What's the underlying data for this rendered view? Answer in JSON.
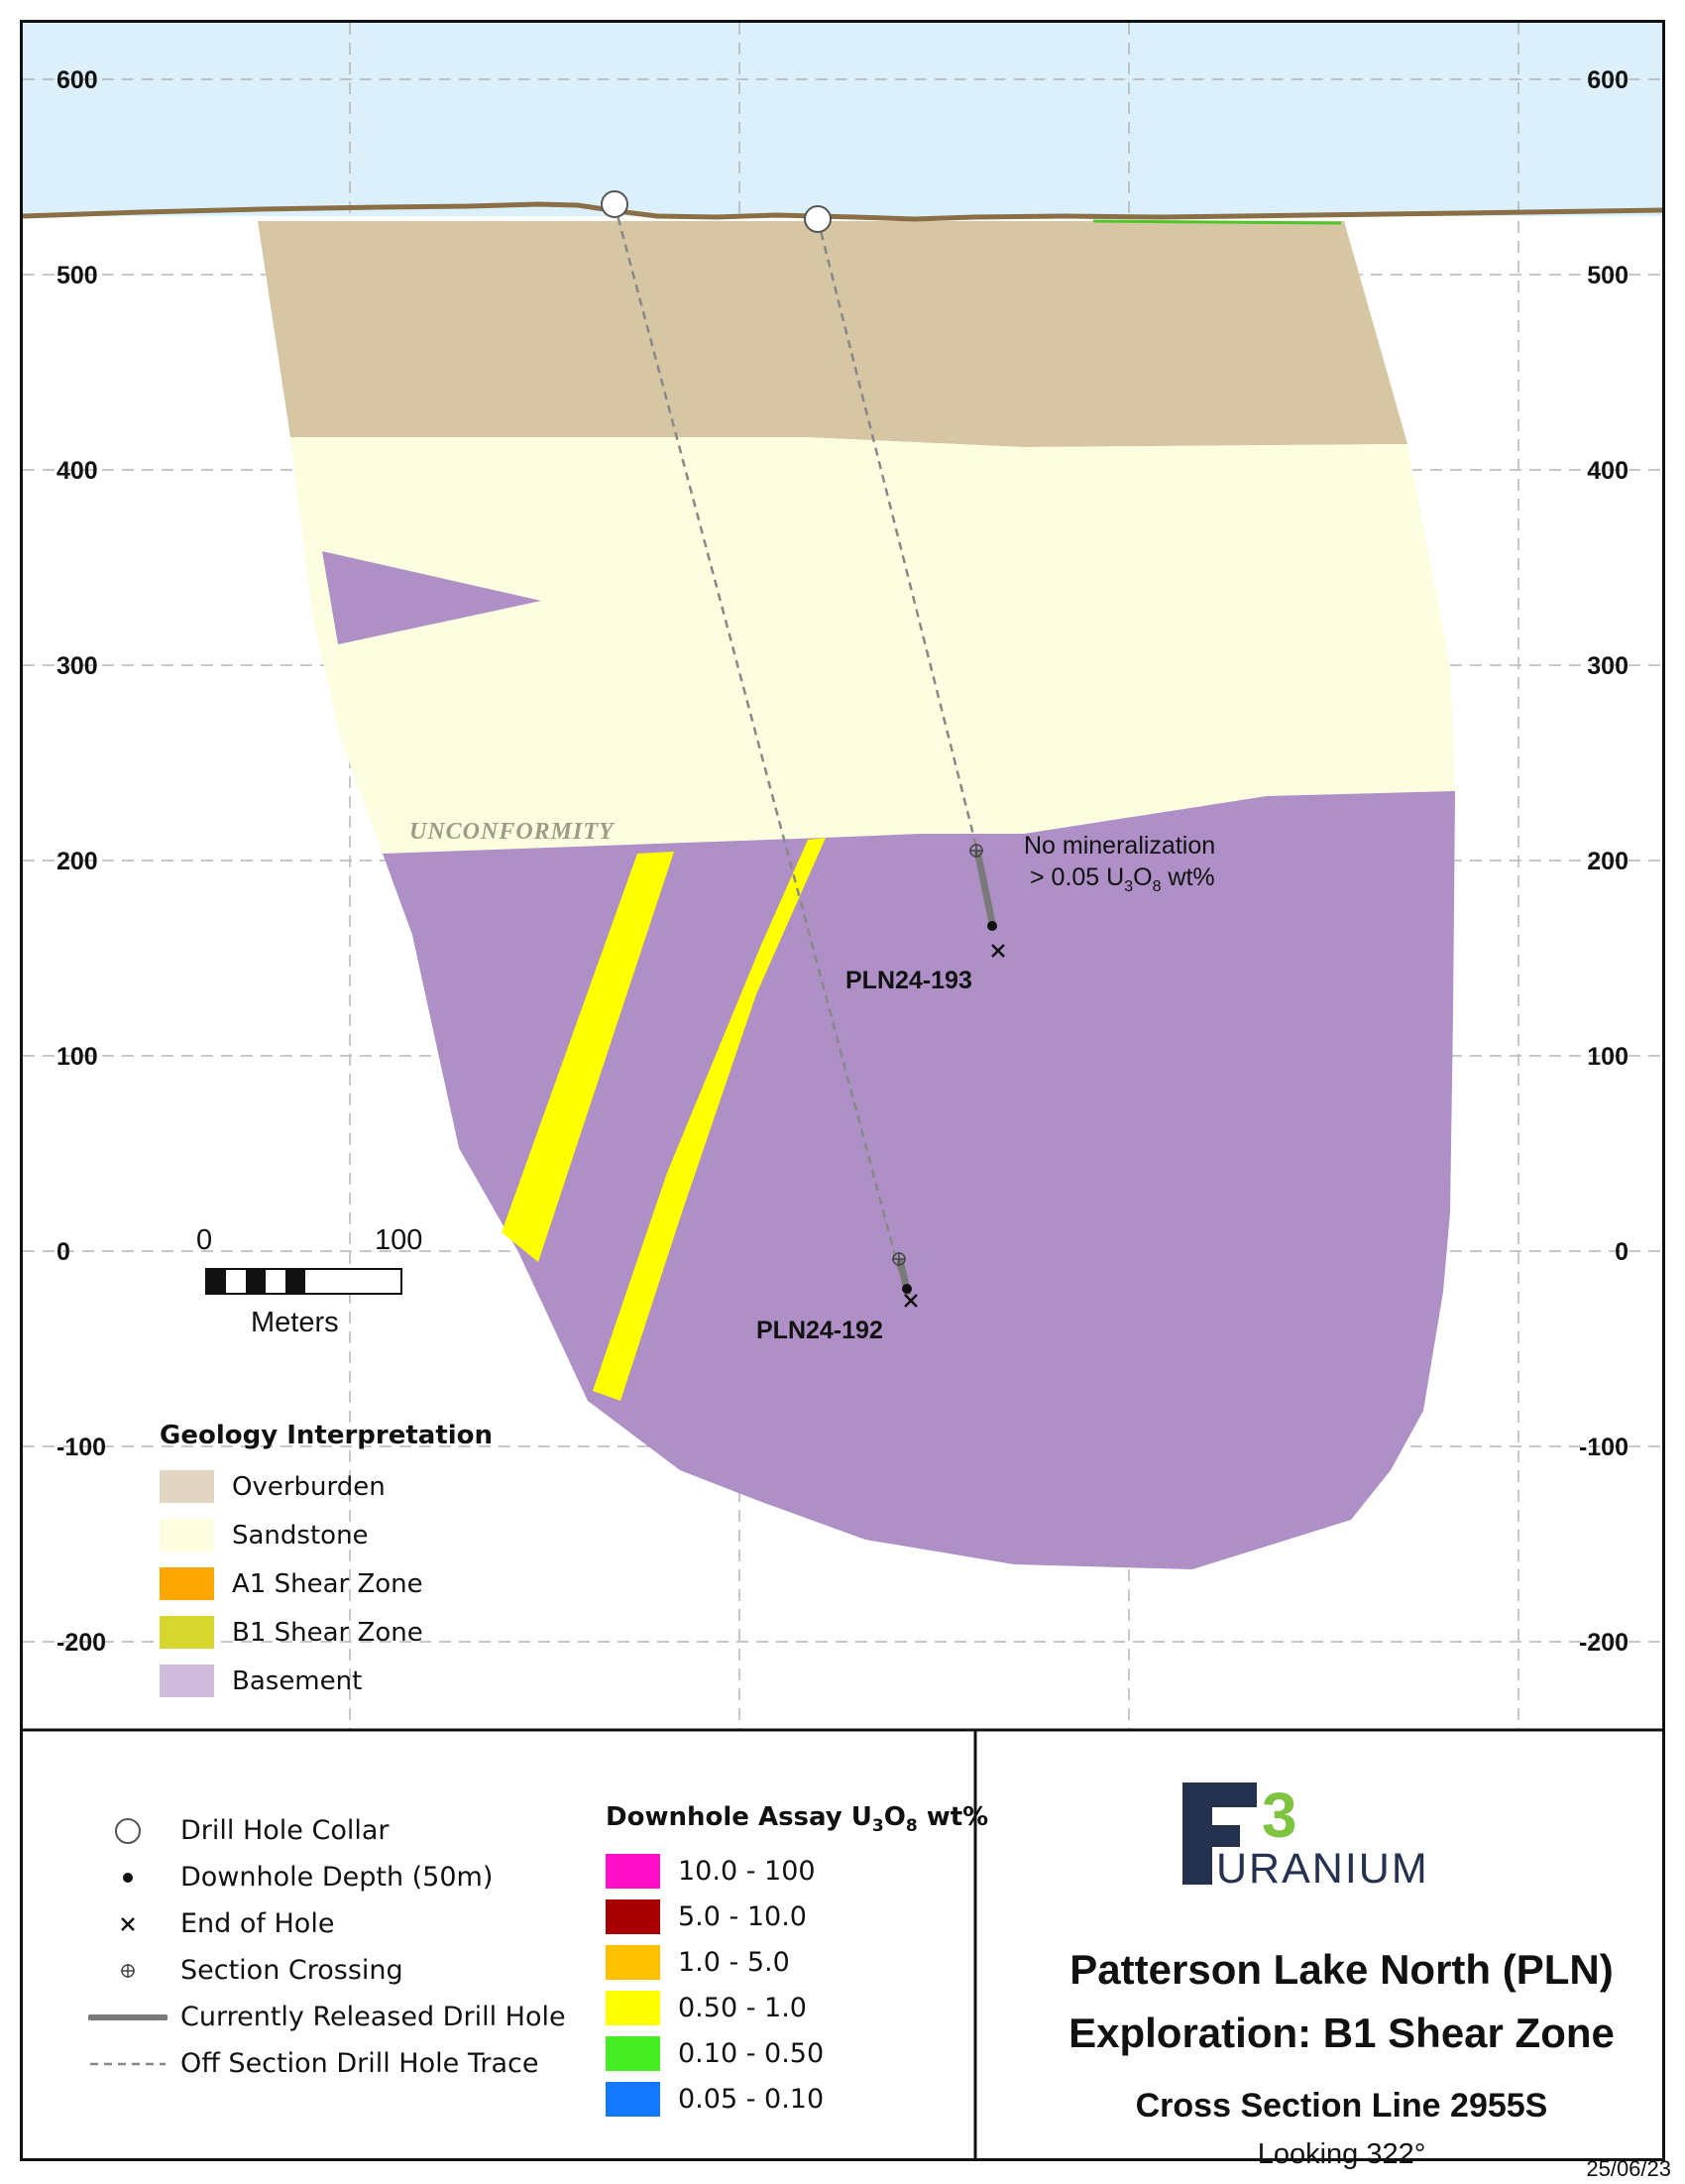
{
  "axis": {
    "elevation_ticks": [
      "600",
      "500",
      "400",
      "300",
      "200",
      "100",
      "0",
      "-100",
      "-200"
    ],
    "elevation_values": [
      600,
      500,
      400,
      300,
      200,
      100,
      0,
      -100,
      -200
    ]
  },
  "map": {
    "unconformity_label": "UNCONFORMITY",
    "holes": [
      {
        "id": "PLN24-193",
        "note_line1": "No mineralization",
        "note_line2_prefix": "> 0.05 U",
        "note_line2_sub1": "3",
        "note_line2_mid": "O",
        "note_line2_sub2": "8",
        "note_line2_suffix": " wt%"
      },
      {
        "id": "PLN24-192"
      }
    ]
  },
  "scale_bar": {
    "start_label": "0",
    "end_label": "100",
    "unit_label": "Meters"
  },
  "geology_legend": {
    "title": "Geology Interpretation",
    "items": [
      {
        "label": "Overburden",
        "color": "#e2d6c3"
      },
      {
        "label": "Sandstone",
        "color": "#fdfde0"
      },
      {
        "label": "A1 Shear Zone",
        "color": "#ffa600"
      },
      {
        "label": "B1 Shear Zone",
        "color": "#d6d62e"
      },
      {
        "label": "Basement",
        "color": "#d2bcdd"
      }
    ]
  },
  "symbol_legend": {
    "items": [
      {
        "label": "Drill Hole Collar",
        "icon": "circle-icon"
      },
      {
        "label": "Downhole Depth (50m)",
        "icon": "dot-icon"
      },
      {
        "label": "End of Hole",
        "icon": "x-icon"
      },
      {
        "label": "Section Crossing",
        "icon": "crosshair-circle-icon"
      },
      {
        "label": "Currently Released Drill Hole",
        "icon": "solid-line-icon"
      },
      {
        "label": "Off Section Drill Hole Trace",
        "icon": "dashed-line-icon"
      }
    ]
  },
  "assay_legend": {
    "title_prefix": "Downhole Assay U",
    "title_sub1": "3",
    "title_mid": "O",
    "title_sub2": "8",
    "title_suffix": " wt%",
    "items": [
      {
        "label": "10.0 - 100",
        "color": "#ff10c8"
      },
      {
        "label": "5.0 - 10.0",
        "color": "#a80000"
      },
      {
        "label": "1.0 - 5.0",
        "color": "#ffc000"
      },
      {
        "label": "0.50 - 1.0",
        "color": "#ffff00"
      },
      {
        "label": "0.10 - 0.50",
        "color": "#44ee22"
      },
      {
        "label": "0.05 - 0.10",
        "color": "#1478ff"
      }
    ]
  },
  "title_block": {
    "logo_f": "F",
    "logo_3": "3",
    "logo_text": "URANIUM",
    "line1": "Patterson Lake North (PLN)",
    "line2": "Exploration: B1 Shear Zone",
    "line3": "Cross Section Line 2955S",
    "looking": "Looking 322°",
    "date": "25/06/23"
  },
  "colors": {
    "sky": "#dbf0fa",
    "overburden": "#d6c6a4",
    "sandstone": "#fdfde0",
    "basement": "#ae8fc6",
    "shear_zone": "#ffff00",
    "topo_line": "#8a6e45",
    "logo_navy": "#25324f",
    "logo_green": "#7ec440"
  }
}
